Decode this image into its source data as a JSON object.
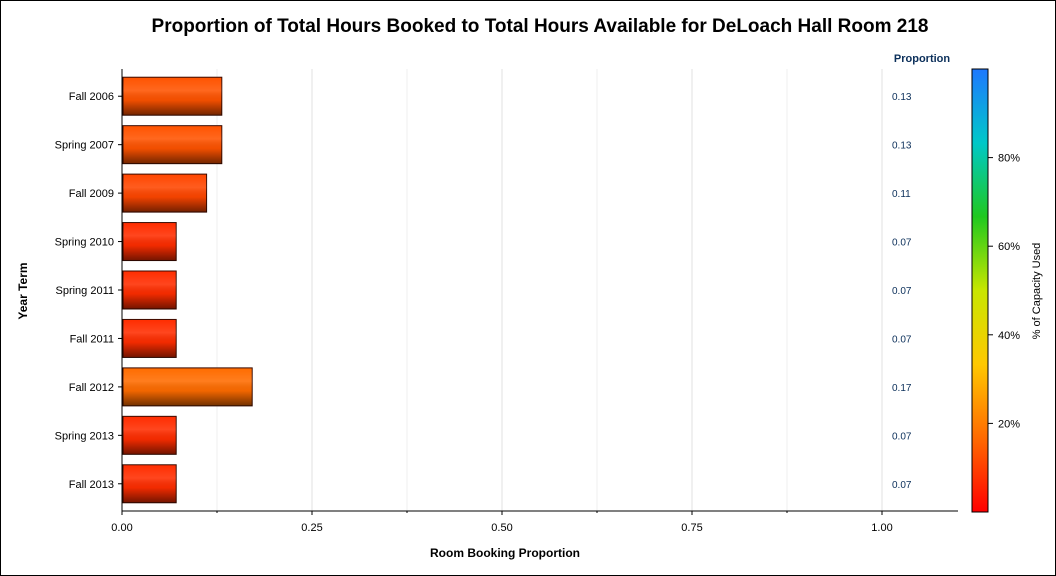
{
  "chart_data": {
    "type": "bar",
    "orientation": "horizontal",
    "title": "Proportion of Total Hours Booked to Total Hours Available for DeLoach Hall Room 218",
    "xlabel": "Room Booking Proportion",
    "ylabel": "Year Term",
    "xlim": [
      0,
      1.1
    ],
    "xticks": [
      "0.00",
      "0.25",
      "0.50",
      "0.75",
      "1.00"
    ],
    "grid": true,
    "categories": [
      "Fall 2006",
      "Spring 2007",
      "Fall 2009",
      "Spring 2010",
      "Spring 2011",
      "Fall 2011",
      "Fall 2012",
      "Spring 2013",
      "Fall 2013"
    ],
    "values": [
      0.13,
      0.13,
      0.11,
      0.07,
      0.07,
      0.07,
      0.17,
      0.07,
      0.07
    ],
    "value_labels": [
      "0.13",
      "0.13",
      "0.11",
      "0.07",
      "0.07",
      "0.07",
      "0.17",
      "0.07",
      "0.07"
    ],
    "value_column_header": "Proportion",
    "colorbar": {
      "label": "% of Capacity Used",
      "range": [
        0,
        100
      ],
      "ticks": [
        {
          "value": 20,
          "label": "20%"
        },
        {
          "value": 40,
          "label": "40%"
        },
        {
          "value": 60,
          "label": "60%"
        },
        {
          "value": 80,
          "label": "80%"
        }
      ],
      "colors": [
        "#ff0000",
        "#ff6a00",
        "#ffc800",
        "#c8e600",
        "#1fc81f",
        "#00c8c8",
        "#1e78ff"
      ]
    }
  }
}
